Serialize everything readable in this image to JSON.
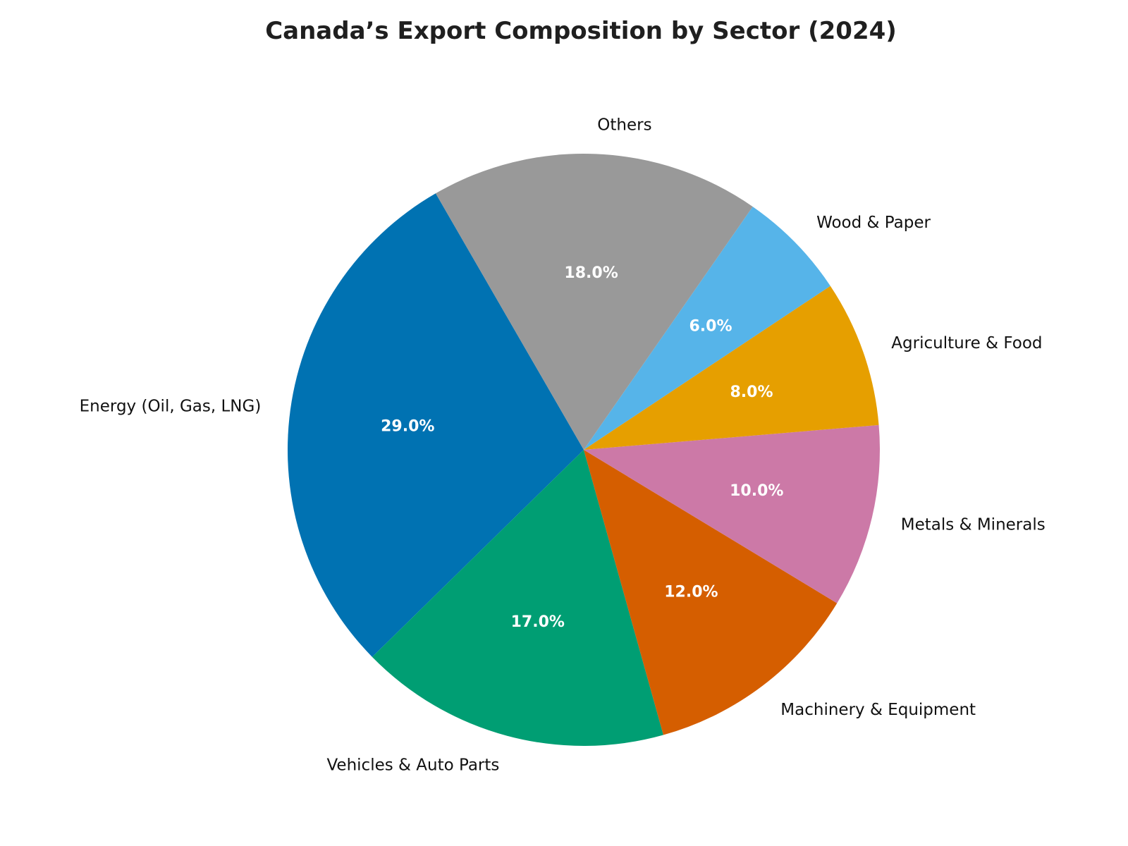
{
  "title": "Canada’s Export Composition by Sector (2024)",
  "chart_data": {
    "type": "pie",
    "title": "Canada’s Export Composition by Sector (2024)",
    "slices": [
      {
        "label": "Energy (Oil, Gas, LNG)",
        "value": 29.0,
        "pct_label": "29.0%",
        "color": "#0072B2"
      },
      {
        "label": "Vehicles & Auto Parts",
        "value": 17.0,
        "pct_label": "17.0%",
        "color": "#009E73"
      },
      {
        "label": "Machinery & Equipment",
        "value": 12.0,
        "pct_label": "12.0%",
        "color": "#D55E00"
      },
      {
        "label": "Metals & Minerals",
        "value": 10.0,
        "pct_label": "10.0%",
        "color": "#CC79A7"
      },
      {
        "label": "Agriculture & Food",
        "value": 8.0,
        "pct_label": "8.0%",
        "color": "#E69F00"
      },
      {
        "label": "Wood & Paper",
        "value": 6.0,
        "pct_label": "6.0%",
        "color": "#56B4E9"
      },
      {
        "label": "Others",
        "value": 18.0,
        "pct_label": "18.0%",
        "color": "#999999"
      }
    ],
    "start_angle": 120,
    "direction": "counterclockwise",
    "pct_distance": 0.6,
    "label_distance": 1.1,
    "pct_label_color": "#ffffff",
    "slice_label_color": "#111111",
    "title_color": "#1f1f1f",
    "background_color": "#ffffff",
    "legend": "none",
    "total": 100.0
  }
}
